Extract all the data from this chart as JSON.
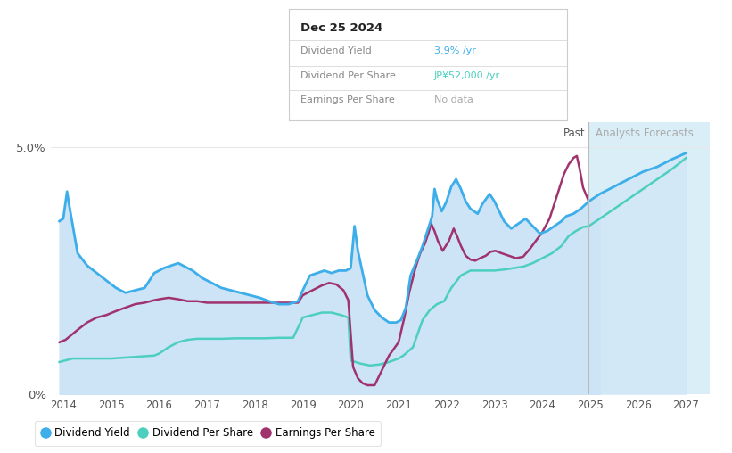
{
  "tooltip_date": "Dec 25 2024",
  "tooltip_yield": "3.9% /yr",
  "tooltip_dps": "JP¥52,000 /yr",
  "tooltip_eps": "No data",
  "x_min": 2013.75,
  "x_max": 2027.5,
  "y_min": 0.0,
  "y_max": 5.5,
  "x_ticks": [
    2014,
    2015,
    2016,
    2017,
    2018,
    2019,
    2020,
    2021,
    2022,
    2023,
    2024,
    2025,
    2026,
    2027
  ],
  "past_line_x": 2024.97,
  "background_color": "#ffffff",
  "past_fill_color": "#cce4f5",
  "forecast_bg_color": "#daeef8",
  "forecast_fill_color": "#cce4f5",
  "div_yield_color": "#3daee9",
  "dps_color": "#4dcfbf",
  "eps_color": "#a0336e",
  "grid_color": "#e8e8e8",
  "div_yield_data": [
    [
      2013.92,
      3.5
    ],
    [
      2014.0,
      3.55
    ],
    [
      2014.08,
      4.1
    ],
    [
      2014.12,
      3.85
    ],
    [
      2014.3,
      2.85
    ],
    [
      2014.5,
      2.6
    ],
    [
      2014.7,
      2.45
    ],
    [
      2014.9,
      2.3
    ],
    [
      2015.1,
      2.15
    ],
    [
      2015.3,
      2.05
    ],
    [
      2015.5,
      2.1
    ],
    [
      2015.7,
      2.15
    ],
    [
      2015.9,
      2.45
    ],
    [
      2016.1,
      2.55
    ],
    [
      2016.25,
      2.6
    ],
    [
      2016.4,
      2.65
    ],
    [
      2016.5,
      2.6
    ],
    [
      2016.7,
      2.5
    ],
    [
      2016.9,
      2.35
    ],
    [
      2017.1,
      2.25
    ],
    [
      2017.3,
      2.15
    ],
    [
      2017.5,
      2.1
    ],
    [
      2017.7,
      2.05
    ],
    [
      2017.9,
      2.0
    ],
    [
      2018.1,
      1.95
    ],
    [
      2018.3,
      1.88
    ],
    [
      2018.5,
      1.82
    ],
    [
      2018.7,
      1.82
    ],
    [
      2018.9,
      1.88
    ],
    [
      2019.0,
      2.1
    ],
    [
      2019.15,
      2.4
    ],
    [
      2019.3,
      2.45
    ],
    [
      2019.45,
      2.5
    ],
    [
      2019.6,
      2.45
    ],
    [
      2019.75,
      2.5
    ],
    [
      2019.9,
      2.5
    ],
    [
      2020.0,
      2.55
    ],
    [
      2020.08,
      3.4
    ],
    [
      2020.15,
      2.9
    ],
    [
      2020.25,
      2.45
    ],
    [
      2020.35,
      2.0
    ],
    [
      2020.5,
      1.7
    ],
    [
      2020.65,
      1.55
    ],
    [
      2020.8,
      1.45
    ],
    [
      2020.95,
      1.45
    ],
    [
      2021.05,
      1.5
    ],
    [
      2021.15,
      1.75
    ],
    [
      2021.25,
      2.4
    ],
    [
      2021.4,
      2.75
    ],
    [
      2021.5,
      3.0
    ],
    [
      2021.6,
      3.3
    ],
    [
      2021.7,
      3.6
    ],
    [
      2021.75,
      4.15
    ],
    [
      2021.8,
      3.95
    ],
    [
      2021.9,
      3.7
    ],
    [
      2022.0,
      3.9
    ],
    [
      2022.1,
      4.2
    ],
    [
      2022.2,
      4.35
    ],
    [
      2022.3,
      4.15
    ],
    [
      2022.4,
      3.9
    ],
    [
      2022.5,
      3.75
    ],
    [
      2022.65,
      3.65
    ],
    [
      2022.75,
      3.85
    ],
    [
      2022.9,
      4.05
    ],
    [
      2023.0,
      3.9
    ],
    [
      2023.1,
      3.7
    ],
    [
      2023.2,
      3.5
    ],
    [
      2023.35,
      3.35
    ],
    [
      2023.5,
      3.45
    ],
    [
      2023.65,
      3.55
    ],
    [
      2023.8,
      3.4
    ],
    [
      2023.95,
      3.25
    ],
    [
      2024.1,
      3.3
    ],
    [
      2024.25,
      3.4
    ],
    [
      2024.4,
      3.5
    ],
    [
      2024.5,
      3.6
    ],
    [
      2024.65,
      3.65
    ],
    [
      2024.8,
      3.75
    ],
    [
      2024.97,
      3.9
    ]
  ],
  "div_yield_forecast": [
    [
      2024.97,
      3.9
    ],
    [
      2025.2,
      4.05
    ],
    [
      2025.5,
      4.2
    ],
    [
      2025.8,
      4.35
    ],
    [
      2026.1,
      4.5
    ],
    [
      2026.4,
      4.6
    ],
    [
      2026.7,
      4.75
    ],
    [
      2027.0,
      4.88
    ]
  ],
  "dps_data": [
    [
      2013.92,
      0.65
    ],
    [
      2014.2,
      0.72
    ],
    [
      2014.5,
      0.72
    ],
    [
      2014.8,
      0.72
    ],
    [
      2015.0,
      0.72
    ],
    [
      2015.3,
      0.74
    ],
    [
      2015.6,
      0.76
    ],
    [
      2015.9,
      0.78
    ],
    [
      2016.0,
      0.82
    ],
    [
      2016.2,
      0.95
    ],
    [
      2016.4,
      1.05
    ],
    [
      2016.6,
      1.1
    ],
    [
      2016.8,
      1.12
    ],
    [
      2017.0,
      1.12
    ],
    [
      2017.3,
      1.12
    ],
    [
      2017.6,
      1.13
    ],
    [
      2017.9,
      1.13
    ],
    [
      2018.2,
      1.13
    ],
    [
      2018.5,
      1.14
    ],
    [
      2018.8,
      1.14
    ],
    [
      2019.0,
      1.55
    ],
    [
      2019.2,
      1.6
    ],
    [
      2019.4,
      1.65
    ],
    [
      2019.6,
      1.65
    ],
    [
      2019.8,
      1.6
    ],
    [
      2019.95,
      1.55
    ],
    [
      2020.0,
      0.68
    ],
    [
      2020.2,
      0.62
    ],
    [
      2020.4,
      0.58
    ],
    [
      2020.6,
      0.6
    ],
    [
      2020.8,
      0.65
    ],
    [
      2021.0,
      0.72
    ],
    [
      2021.1,
      0.78
    ],
    [
      2021.3,
      0.95
    ],
    [
      2021.5,
      1.5
    ],
    [
      2021.65,
      1.7
    ],
    [
      2021.8,
      1.82
    ],
    [
      2021.95,
      1.88
    ],
    [
      2022.1,
      2.15
    ],
    [
      2022.3,
      2.4
    ],
    [
      2022.5,
      2.5
    ],
    [
      2022.7,
      2.5
    ],
    [
      2022.9,
      2.5
    ],
    [
      2023.0,
      2.5
    ],
    [
      2023.2,
      2.52
    ],
    [
      2023.4,
      2.55
    ],
    [
      2023.6,
      2.58
    ],
    [
      2023.8,
      2.65
    ],
    [
      2024.0,
      2.75
    ],
    [
      2024.2,
      2.85
    ],
    [
      2024.4,
      3.0
    ],
    [
      2024.55,
      3.2
    ],
    [
      2024.7,
      3.3
    ],
    [
      2024.85,
      3.38
    ],
    [
      2024.97,
      3.4
    ]
  ],
  "dps_forecast": [
    [
      2024.97,
      3.4
    ],
    [
      2025.2,
      3.55
    ],
    [
      2025.5,
      3.75
    ],
    [
      2025.8,
      3.95
    ],
    [
      2026.1,
      4.15
    ],
    [
      2026.4,
      4.35
    ],
    [
      2026.7,
      4.55
    ],
    [
      2027.0,
      4.78
    ]
  ],
  "eps_data": [
    [
      2013.92,
      1.05
    ],
    [
      2014.05,
      1.1
    ],
    [
      2014.15,
      1.18
    ],
    [
      2014.3,
      1.3
    ],
    [
      2014.5,
      1.45
    ],
    [
      2014.7,
      1.55
    ],
    [
      2014.9,
      1.6
    ],
    [
      2015.1,
      1.68
    ],
    [
      2015.3,
      1.75
    ],
    [
      2015.5,
      1.82
    ],
    [
      2015.7,
      1.85
    ],
    [
      2015.9,
      1.9
    ],
    [
      2016.0,
      1.92
    ],
    [
      2016.2,
      1.95
    ],
    [
      2016.4,
      1.92
    ],
    [
      2016.6,
      1.88
    ],
    [
      2016.8,
      1.88
    ],
    [
      2017.0,
      1.85
    ],
    [
      2017.2,
      1.85
    ],
    [
      2017.5,
      1.85
    ],
    [
      2017.8,
      1.85
    ],
    [
      2018.0,
      1.85
    ],
    [
      2018.3,
      1.85
    ],
    [
      2018.6,
      1.85
    ],
    [
      2018.9,
      1.85
    ],
    [
      2019.0,
      2.0
    ],
    [
      2019.2,
      2.1
    ],
    [
      2019.4,
      2.2
    ],
    [
      2019.55,
      2.25
    ],
    [
      2019.7,
      2.22
    ],
    [
      2019.85,
      2.1
    ],
    [
      2019.95,
      1.9
    ],
    [
      2020.05,
      0.55
    ],
    [
      2020.15,
      0.32
    ],
    [
      2020.25,
      0.22
    ],
    [
      2020.35,
      0.18
    ],
    [
      2020.5,
      0.18
    ],
    [
      2020.65,
      0.48
    ],
    [
      2020.8,
      0.78
    ],
    [
      2021.0,
      1.05
    ],
    [
      2021.12,
      1.55
    ],
    [
      2021.22,
      2.05
    ],
    [
      2021.35,
      2.55
    ],
    [
      2021.45,
      2.85
    ],
    [
      2021.55,
      3.05
    ],
    [
      2021.62,
      3.25
    ],
    [
      2021.68,
      3.45
    ],
    [
      2021.75,
      3.3
    ],
    [
      2021.82,
      3.1
    ],
    [
      2021.92,
      2.9
    ],
    [
      2022.05,
      3.1
    ],
    [
      2022.15,
      3.35
    ],
    [
      2022.22,
      3.2
    ],
    [
      2022.3,
      3.0
    ],
    [
      2022.4,
      2.8
    ],
    [
      2022.5,
      2.72
    ],
    [
      2022.6,
      2.7
    ],
    [
      2022.7,
      2.75
    ],
    [
      2022.82,
      2.8
    ],
    [
      2022.92,
      2.88
    ],
    [
      2023.02,
      2.9
    ],
    [
      2023.15,
      2.85
    ],
    [
      2023.3,
      2.8
    ],
    [
      2023.45,
      2.75
    ],
    [
      2023.6,
      2.78
    ],
    [
      2023.75,
      2.95
    ],
    [
      2024.0,
      3.28
    ],
    [
      2024.15,
      3.55
    ],
    [
      2024.25,
      3.85
    ],
    [
      2024.35,
      4.15
    ],
    [
      2024.45,
      4.45
    ],
    [
      2024.55,
      4.65
    ],
    [
      2024.65,
      4.78
    ],
    [
      2024.72,
      4.82
    ],
    [
      2024.78,
      4.55
    ],
    [
      2024.85,
      4.18
    ],
    [
      2024.97,
      3.9
    ]
  ]
}
